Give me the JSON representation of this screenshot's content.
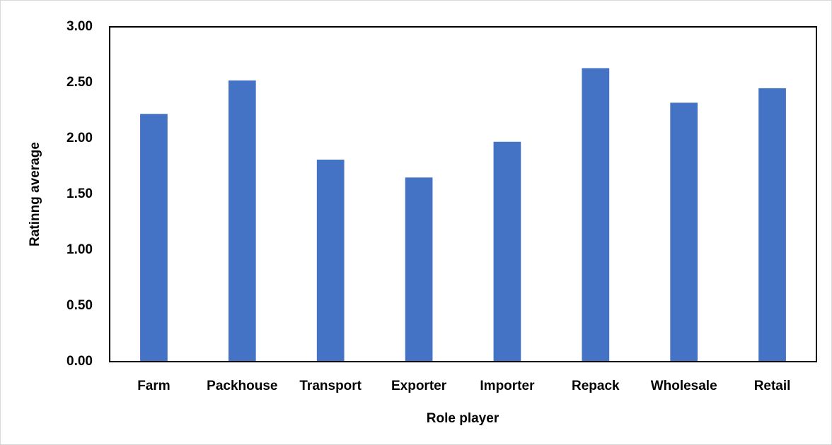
{
  "chart_data": {
    "type": "bar",
    "x_label": "Role player",
    "y_label": "Ratinng average",
    "categories": [
      "Farm",
      "Packhouse",
      "Transport",
      "Exporter",
      "Importer",
      "Repack",
      "Wholesale",
      "Retail"
    ],
    "values": [
      2.22,
      2.52,
      1.81,
      1.65,
      1.97,
      2.63,
      2.32,
      2.45
    ],
    "color": "#4472c4",
    "ylim": [
      0,
      3
    ],
    "yticks": [
      {
        "value": 0,
        "label": "0.00"
      },
      {
        "value": 0.5,
        "label": "0.50"
      },
      {
        "value": 1,
        "label": "1.00"
      },
      {
        "value": 1.5,
        "label": "1.50"
      },
      {
        "value": 2,
        "label": "2.00"
      },
      {
        "value": 2.5,
        "label": "2.50"
      },
      {
        "value": 3,
        "label": "3.00"
      }
    ],
    "grid": false
  }
}
